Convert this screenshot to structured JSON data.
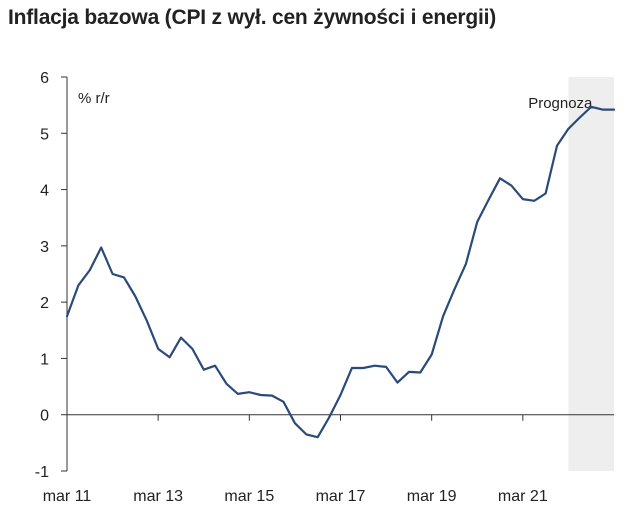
{
  "chart_data": {
    "type": "line",
    "title": "Inflacja bazowa (CPI z wył. cen żywności i energii)",
    "unit_label": "% r/r",
    "forecast_label": "Prognoza",
    "xlabel": "",
    "ylabel": "",
    "ylim": [
      -1,
      6
    ],
    "y_ticks": [
      -1,
      0,
      1,
      2,
      3,
      4,
      5,
      6
    ],
    "x_ticks": [
      {
        "label": "mar 11",
        "q": 0
      },
      {
        "label": "mar 13",
        "q": 8
      },
      {
        "label": "mar 15",
        "q": 16
      },
      {
        "label": "mar 17",
        "q": 24
      },
      {
        "label": "mar 19",
        "q": 32
      },
      {
        "label": "mar 21",
        "q": 40
      }
    ],
    "x_domain": [
      0,
      48
    ],
    "forecast_start_q": 44,
    "grid": false,
    "line_color": "#2a4a7a",
    "forecast_shade_color": "#eeeeee",
    "series": [
      {
        "q": [
          0,
          1,
          2,
          3,
          4,
          5,
          6,
          7,
          8,
          9,
          10,
          11,
          12,
          13,
          14,
          15,
          16,
          17,
          18,
          19,
          20,
          21,
          22,
          23,
          24,
          25,
          26,
          27,
          28,
          29,
          30,
          31,
          32,
          33,
          34,
          35,
          36,
          37,
          38,
          39,
          40,
          41,
          42,
          43,
          44,
          45,
          46,
          47,
          48
        ],
        "values": [
          1.75,
          2.3,
          2.57,
          2.97,
          2.5,
          2.44,
          2.1,
          1.67,
          1.17,
          1.02,
          1.37,
          1.17,
          0.8,
          0.87,
          0.55,
          0.37,
          0.4,
          0.35,
          0.34,
          0.23,
          -0.15,
          -0.35,
          -0.4,
          -0.05,
          0.35,
          0.83,
          0.83,
          0.87,
          0.85,
          0.57,
          0.76,
          0.75,
          1.07,
          1.75,
          2.23,
          2.68,
          3.43,
          3.82,
          4.2,
          4.07,
          3.83,
          3.8,
          3.93,
          4.78,
          5.08,
          5.28,
          5.47,
          5.42,
          5.42
        ]
      }
    ]
  }
}
